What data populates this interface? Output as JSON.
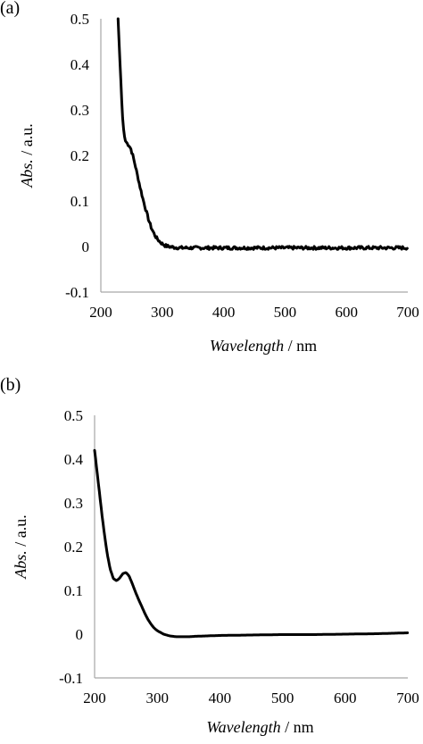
{
  "chart_data": [
    {
      "panel_label": "(a)",
      "type": "line",
      "ylabel_italic": "Abs.",
      "ylabel_rest": " / a.u.",
      "xlabel_italic": "Wavelength",
      "xlabel_rest": " / nm",
      "xlim": [
        200,
        700
      ],
      "ylim": [
        -0.1,
        0.5
      ],
      "xticks": [
        "200",
        "300",
        "400",
        "500",
        "600",
        "700"
      ],
      "yticks": [
        "0.5",
        "0.4",
        "0.3",
        "0.2",
        "0.1",
        "0",
        "-0.1"
      ],
      "grid": false,
      "legend": "none",
      "noise": 0.0035,
      "series": [
        {
          "x": [
            228,
            230,
            232,
            234,
            236,
            238,
            240,
            243,
            246,
            249,
            252,
            255,
            258,
            261,
            264,
            267,
            270,
            274,
            278,
            282,
            286,
            290,
            295,
            300,
            305,
            310,
            320,
            330,
            340,
            350,
            380,
            400,
            450,
            500,
            550,
            600,
            650,
            700
          ],
          "y": [
            0.5,
            0.44,
            0.38,
            0.32,
            0.27,
            0.245,
            0.232,
            0.226,
            0.222,
            0.214,
            0.2,
            0.184,
            0.166,
            0.148,
            0.13,
            0.113,
            0.097,
            0.077,
            0.058,
            0.042,
            0.03,
            0.02,
            0.012,
            0.006,
            0.002,
            0.0,
            -0.002,
            -0.003,
            -0.003,
            -0.003,
            -0.003,
            -0.003,
            -0.003,
            -0.003,
            -0.003,
            -0.003,
            -0.003,
            -0.003
          ]
        }
      ]
    },
    {
      "panel_label": "(b)",
      "type": "line",
      "ylabel_italic": "Abs.",
      "ylabel_rest": " / a.u.",
      "xlabel_italic": "Wavelength",
      "xlabel_rest": " / nm",
      "xlim": [
        200,
        700
      ],
      "ylim": [
        -0.1,
        0.5
      ],
      "xticks": [
        "200",
        "300",
        "400",
        "500",
        "600",
        "700"
      ],
      "yticks": [
        "0.5",
        "0.4",
        "0.3",
        "0.2",
        "0.1",
        "0",
        "-0.1"
      ],
      "grid": false,
      "legend": "none",
      "noise": 0,
      "series": [
        {
          "x": [
            200,
            204,
            208,
            212,
            216,
            220,
            225,
            230,
            235,
            240,
            245,
            250,
            255,
            260,
            265,
            270,
            275,
            280,
            285,
            290,
            295,
            300,
            310,
            320,
            330,
            340,
            350,
            360,
            380,
            400,
            450,
            500,
            550,
            600,
            650,
            700
          ],
          "y": [
            0.42,
            0.37,
            0.32,
            0.27,
            0.225,
            0.185,
            0.148,
            0.127,
            0.122,
            0.128,
            0.138,
            0.141,
            0.133,
            0.116,
            0.097,
            0.08,
            0.064,
            0.048,
            0.034,
            0.023,
            0.014,
            0.008,
            0.0,
            -0.004,
            -0.006,
            -0.006,
            -0.006,
            -0.005,
            -0.004,
            -0.003,
            -0.002,
            -0.001,
            -0.001,
            0.0,
            0.001,
            0.003
          ]
        }
      ]
    }
  ]
}
